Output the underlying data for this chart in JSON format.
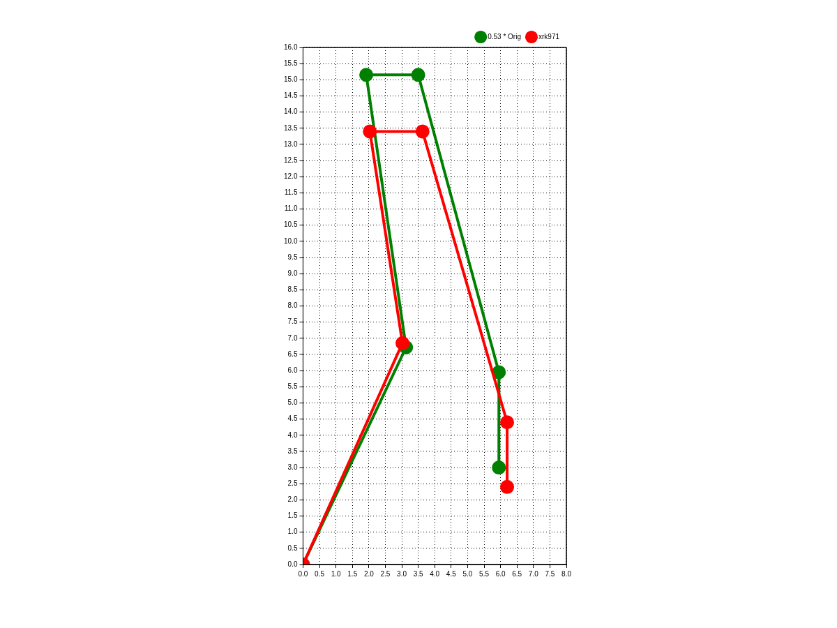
{
  "chart_data": {
    "type": "line",
    "xlim": [
      0,
      8
    ],
    "ylim": [
      0,
      16
    ],
    "xticks": [
      {
        "value": 0,
        "label": "0.0"
      },
      {
        "value": 0.5,
        "label": "0.5"
      },
      {
        "value": 1,
        "label": "1.0"
      },
      {
        "value": 1.5,
        "label": "1.5"
      },
      {
        "value": 2,
        "label": "2.0"
      },
      {
        "value": 2.5,
        "label": "2.5"
      },
      {
        "value": 3,
        "label": "3.0"
      },
      {
        "value": 3.5,
        "label": "3.5"
      },
      {
        "value": 4,
        "label": "4.0"
      },
      {
        "value": 4.5,
        "label": "4.5"
      },
      {
        "value": 5,
        "label": "5.0"
      },
      {
        "value": 5.5,
        "label": "5.5"
      },
      {
        "value": 6,
        "label": "6.0"
      },
      {
        "value": 6.5,
        "label": "6.5"
      },
      {
        "value": 7,
        "label": "7.0"
      },
      {
        "value": 7.5,
        "label": "7.5"
      },
      {
        "value": 8,
        "label": "8.0"
      }
    ],
    "yticks": [
      {
        "value": 0,
        "label": "0.0"
      },
      {
        "value": 0.5,
        "label": "0.5"
      },
      {
        "value": 1,
        "label": "1.0"
      },
      {
        "value": 1.5,
        "label": "1.5"
      },
      {
        "value": 2,
        "label": "2.0"
      },
      {
        "value": 2.5,
        "label": "2.5"
      },
      {
        "value": 3,
        "label": "3.0"
      },
      {
        "value": 3.5,
        "label": "3.5"
      },
      {
        "value": 4,
        "label": "4.0"
      },
      {
        "value": 4.5,
        "label": "4.5"
      },
      {
        "value": 5,
        "label": "5.0"
      },
      {
        "value": 5.5,
        "label": "5.5"
      },
      {
        "value": 6,
        "label": "6.0"
      },
      {
        "value": 6.5,
        "label": "6.5"
      },
      {
        "value": 7,
        "label": "7.0"
      },
      {
        "value": 7.5,
        "label": "7.5"
      },
      {
        "value": 8,
        "label": "8.0"
      },
      {
        "value": 8.5,
        "label": "8.5"
      },
      {
        "value": 9,
        "label": "9.0"
      },
      {
        "value": 9.5,
        "label": "9.5"
      },
      {
        "value": 10,
        "label": "10.0"
      },
      {
        "value": 10.5,
        "label": "10.5"
      },
      {
        "value": 11,
        "label": "11.0"
      },
      {
        "value": 11.5,
        "label": "11.5"
      },
      {
        "value": 12,
        "label": "12.0"
      },
      {
        "value": 12.5,
        "label": "12.5"
      },
      {
        "value": 13,
        "label": "13.0"
      },
      {
        "value": 13.5,
        "label": "13.5"
      },
      {
        "value": 14,
        "label": "14.0"
      },
      {
        "value": 14.5,
        "label": "14.5"
      },
      {
        "value": 15,
        "label": "15.0"
      },
      {
        "value": 15.5,
        "label": "15.5"
      },
      {
        "value": 16,
        "label": "16.0"
      }
    ],
    "grid": true,
    "legend": "top right",
    "marker": "circle",
    "line_style": "solid",
    "series": [
      {
        "name": "0.53 * Orig",
        "color": "#008000",
        "x": [
          0,
          3.13,
          1.92,
          3.5,
          5.95,
          5.95
        ],
        "values": [
          0,
          6.72,
          15.15,
          15.15,
          5.95,
          3.0
        ]
      },
      {
        "name": "xrk971",
        "color": "#ff0000",
        "x": [
          0,
          3.02,
          2.03,
          3.63,
          6.2,
          6.2
        ],
        "values": [
          0,
          6.85,
          13.4,
          13.4,
          4.4,
          2.4
        ]
      }
    ]
  }
}
